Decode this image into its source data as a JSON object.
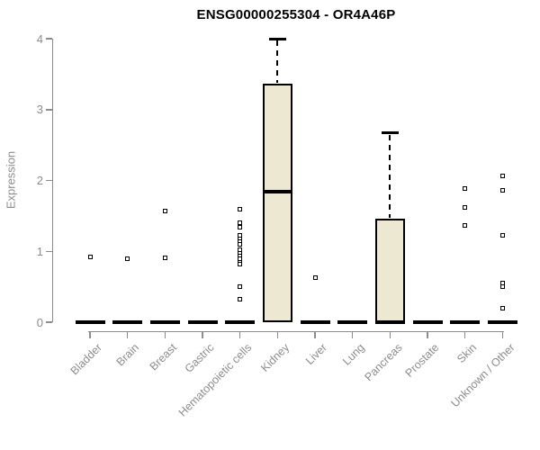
{
  "title": "ENSG00000255304 - OR4A46P",
  "colors": {
    "title_text": "#000000",
    "axis": "#8C8C8C",
    "tick_text": "#8C8C8C",
    "category_text": "#8C8C8C",
    "box_fill": "#EDE8D1",
    "box_border": "#000000",
    "median": "#000000",
    "whisker": "#000000",
    "outlier_fill": "#FFFFFF"
  },
  "chart_data": {
    "type": "boxplot",
    "title": "ENSG00000255304 - OR4A46P",
    "xlabel": "",
    "ylabel": "Expression",
    "ylim": [
      0,
      4
    ],
    "yticks": [
      0,
      1,
      2,
      3,
      4
    ],
    "grid": false,
    "legend": "none",
    "categories": [
      "Bladder",
      "Brain",
      "Breast",
      "Gastric",
      "Hematopoietic cells",
      "Kidney",
      "Liver",
      "Lung",
      "Pancreas",
      "Prostate",
      "Skin",
      "Unknown / Other"
    ],
    "series": [
      {
        "name": "Bladder",
        "low": 0,
        "q1": 0,
        "median": 0,
        "q3": 0,
        "high": 0,
        "outliers": [
          0.92
        ]
      },
      {
        "name": "Brain",
        "low": 0,
        "q1": 0,
        "median": 0,
        "q3": 0,
        "high": 0,
        "outliers": [
          0.9
        ]
      },
      {
        "name": "Breast",
        "low": 0,
        "q1": 0,
        "median": 0,
        "q3": 0,
        "high": 0,
        "outliers": [
          1.57,
          0.91
        ]
      },
      {
        "name": "Gastric",
        "low": 0,
        "q1": 0,
        "median": 0,
        "q3": 0,
        "high": 0,
        "outliers": []
      },
      {
        "name": "Hematopoietic cells",
        "low": 0,
        "q1": 0,
        "median": 0,
        "q3": 0,
        "high": 0,
        "outliers": [
          1.6,
          1.4,
          1.34,
          1.22,
          1.18,
          1.14,
          1.1,
          1.02,
          0.97,
          0.93,
          0.89,
          0.85,
          0.82,
          0.5,
          0.32
        ]
      },
      {
        "name": "Kidney",
        "low": 0,
        "q1": 0,
        "median": 1.84,
        "q3": 3.36,
        "high": 4.0,
        "outliers": []
      },
      {
        "name": "Liver",
        "low": 0,
        "q1": 0,
        "median": 0,
        "q3": 0,
        "high": 0,
        "outliers": [
          0.63
        ]
      },
      {
        "name": "Lung",
        "low": 0,
        "q1": 0,
        "median": 0,
        "q3": 0,
        "high": 0,
        "outliers": []
      },
      {
        "name": "Pancreas",
        "low": 0,
        "q1": 0,
        "median": 0,
        "q3": 1.46,
        "high": 2.67,
        "outliers": []
      },
      {
        "name": "Prostate",
        "low": 0,
        "q1": 0,
        "median": 0,
        "q3": 0,
        "high": 0,
        "outliers": []
      },
      {
        "name": "Skin",
        "low": 0,
        "q1": 0,
        "median": 0,
        "q3": 0,
        "high": 0,
        "outliers": [
          1.89,
          1.62,
          1.36
        ]
      },
      {
        "name": "Unknown / Other",
        "low": 0,
        "q1": 0,
        "median": 0,
        "q3": 0,
        "high": 0,
        "outliers": [
          2.06,
          1.86,
          1.22,
          0.55,
          0.5,
          0.2
        ]
      }
    ]
  }
}
